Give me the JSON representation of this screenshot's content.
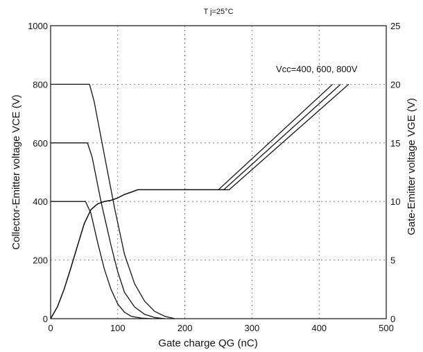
{
  "chart_data": {
    "type": "line",
    "title": "T j=25°C",
    "xlabel": "Gate charge    QG (nC)",
    "ylabel_left": "Collector-Emitter voltage    VCE (V)",
    "ylabel_right": "Gate-Emitter voltage    VGE (V)",
    "annotation": "Vcc=400, 600, 800V",
    "xlim": [
      0,
      500
    ],
    "ylim_left": [
      0,
      1000
    ],
    "ylim_right": [
      0,
      25
    ],
    "x_ticks": [
      0,
      100,
      200,
      300,
      400,
      500
    ],
    "y_ticks_left": [
      0,
      200,
      400,
      600,
      800,
      1000
    ],
    "y_ticks_right": [
      0,
      5,
      10,
      15,
      20,
      25
    ],
    "grid": true,
    "series": [
      {
        "axis": "left",
        "points": [
          [
            0,
            400
          ],
          [
            52,
            400
          ],
          [
            60,
            360
          ],
          [
            70,
            260
          ],
          [
            80,
            170
          ],
          [
            90,
            100
          ],
          [
            100,
            50
          ],
          [
            110,
            22
          ],
          [
            120,
            8
          ],
          [
            135,
            2
          ],
          [
            150,
            0
          ]
        ]
      },
      {
        "axis": "left",
        "points": [
          [
            0,
            600
          ],
          [
            55,
            600
          ],
          [
            62,
            550
          ],
          [
            75,
            400
          ],
          [
            90,
            250
          ],
          [
            100,
            160
          ],
          [
            110,
            90
          ],
          [
            125,
            40
          ],
          [
            140,
            15
          ],
          [
            155,
            4
          ],
          [
            170,
            0
          ]
        ]
      },
      {
        "axis": "left",
        "points": [
          [
            0,
            800
          ],
          [
            58,
            800
          ],
          [
            65,
            740
          ],
          [
            80,
            560
          ],
          [
            95,
            380
          ],
          [
            110,
            220
          ],
          [
            125,
            120
          ],
          [
            140,
            60
          ],
          [
            155,
            25
          ],
          [
            170,
            8
          ],
          [
            185,
            0
          ]
        ]
      },
      {
        "axis": "right",
        "points": [
          [
            0,
            0
          ],
          [
            10,
            1
          ],
          [
            20,
            2.5
          ],
          [
            30,
            4.3
          ],
          [
            40,
            6.2
          ],
          [
            50,
            8.1
          ],
          [
            60,
            9.3
          ],
          [
            70,
            9.8
          ],
          [
            80,
            10.0
          ],
          [
            90,
            10.1
          ],
          [
            100,
            10.3
          ],
          [
            110,
            10.6
          ],
          [
            120,
            10.8
          ],
          [
            130,
            11.0
          ],
          [
            250,
            11.0
          ],
          [
            420,
            20
          ]
        ]
      },
      {
        "axis": "right",
        "points": [
          [
            0,
            0
          ],
          [
            10,
            1
          ],
          [
            20,
            2.5
          ],
          [
            30,
            4.3
          ],
          [
            40,
            6.2
          ],
          [
            50,
            8.1
          ],
          [
            60,
            9.3
          ],
          [
            70,
            9.8
          ],
          [
            80,
            10.0
          ],
          [
            90,
            10.1
          ],
          [
            100,
            10.3
          ],
          [
            110,
            10.6
          ],
          [
            120,
            10.8
          ],
          [
            130,
            11.0
          ],
          [
            258,
            11.0
          ],
          [
            432,
            20
          ]
        ]
      },
      {
        "axis": "right",
        "points": [
          [
            0,
            0
          ],
          [
            10,
            1
          ],
          [
            20,
            2.5
          ],
          [
            30,
            4.3
          ],
          [
            40,
            6.2
          ],
          [
            50,
            8.1
          ],
          [
            60,
            9.3
          ],
          [
            70,
            9.8
          ],
          [
            80,
            10.0
          ],
          [
            90,
            10.1
          ],
          [
            100,
            10.3
          ],
          [
            110,
            10.6
          ],
          [
            120,
            10.8
          ],
          [
            130,
            11.0
          ],
          [
            266,
            11.0
          ],
          [
            444,
            20
          ]
        ]
      }
    ]
  }
}
